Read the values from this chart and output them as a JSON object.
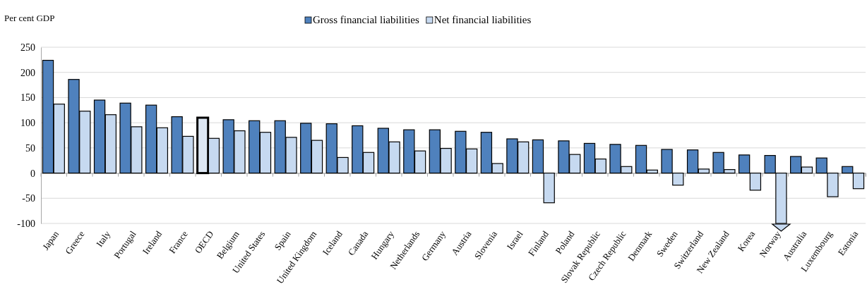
{
  "chart_data": {
    "type": "bar",
    "ylabel": "Per cent GDP",
    "legend": "top",
    "grid": "y",
    "ylim": [
      -100,
      250
    ],
    "yticks": [
      -100,
      -50,
      0,
      50,
      100,
      150,
      200,
      250
    ],
    "categories": [
      "Japan",
      "Greece",
      "Italy",
      "Portugal",
      "Ireland",
      "France",
      "OECD",
      "Belgium",
      "United States",
      "Spain",
      "United Kingdom",
      "Iceland",
      "Canada",
      "Hungary",
      "Netherlands",
      "Germany",
      "Austria",
      "Slovenia",
      "Israel",
      "Finland",
      "Poland",
      "Slovak Republic",
      "Czech Republic",
      "Denmark",
      "Sweden",
      "Switzerland",
      "New Zealand",
      "Korea",
      "Norway",
      "Australia",
      "Luxembourg",
      "Estonia"
    ],
    "series": [
      {
        "name": "Gross financial liabilities",
        "color": "#4f81bd",
        "colors": [
          "#4f81bd",
          "#4f81bd",
          "#4f81bd",
          "#4f81bd",
          "#4f81bd",
          "#4f81bd",
          "#dce6f2",
          "#4f81bd",
          "#4f81bd",
          "#4f81bd",
          "#4f81bd",
          "#4f81bd",
          "#4f81bd",
          "#4f81bd",
          "#4f81bd",
          "#4f81bd",
          "#4f81bd",
          "#4f81bd",
          "#4f81bd",
          "#4f81bd",
          "#4f81bd",
          "#4f81bd",
          "#4f81bd",
          "#4f81bd",
          "#4f81bd",
          "#4f81bd",
          "#4f81bd",
          "#4f81bd",
          "#4f81bd",
          "#4f81bd",
          "#4f81bd",
          "#4f81bd"
        ],
        "values": [
          224,
          186,
          145,
          139,
          135,
          112,
          110,
          106,
          104,
          104,
          99,
          98,
          94,
          89,
          86,
          86,
          83,
          81,
          68,
          66,
          64,
          59,
          57,
          55,
          47,
          46,
          41,
          36,
          35,
          33,
          30,
          13
        ]
      },
      {
        "name": "Net financial liabilities",
        "color": "#c6d9f0",
        "values": [
          137,
          123,
          116,
          92,
          90,
          73,
          69,
          84,
          81,
          71,
          65,
          31,
          41,
          62,
          44,
          49,
          48,
          19,
          62,
          -59,
          37,
          28,
          13,
          6,
          -24,
          8,
          7,
          -34,
          -100,
          12,
          -47,
          -31
        ]
      }
    ]
  }
}
